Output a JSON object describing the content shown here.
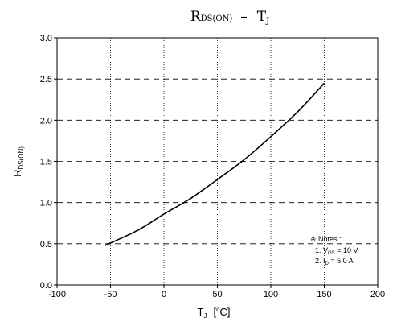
{
  "chart_data": {
    "type": "line",
    "title": {
      "main": "R",
      "sub": "DS(ON)",
      "sep": "–",
      "right_main": "T",
      "right_sub": "J"
    },
    "ylabel": {
      "main": "R",
      "sub": "DS(ON)"
    },
    "xlabel": {
      "main": "T",
      "sub": "J",
      "unit_open": "[",
      "unit_sup": "o",
      "unit_rest": "C]"
    },
    "xlim": [
      -100,
      200
    ],
    "ylim": [
      0.0,
      3.0
    ],
    "x_ticks": [
      -100,
      -50,
      0,
      50,
      100,
      150,
      200
    ],
    "x_tick_labels": [
      "-100",
      "-50",
      "0",
      "50",
      "100",
      "150",
      "200"
    ],
    "y_ticks": [
      0.0,
      0.5,
      1.0,
      1.5,
      2.0,
      2.5,
      3.0
    ],
    "y_tick_labels": [
      "0.0",
      "0.5",
      "1.0",
      "1.5",
      "2.0",
      "2.5",
      "3.0"
    ],
    "grid": {
      "vertical": "dotted",
      "horizontal": "dashed"
    },
    "series": [
      {
        "x": [
          -55,
          -25,
          0,
          25,
          50,
          75,
          100,
          125,
          150
        ],
        "y": [
          0.48,
          0.66,
          0.86,
          1.05,
          1.28,
          1.52,
          1.8,
          2.1,
          2.45
        ]
      }
    ],
    "notes": {
      "heading": "※ Notes :",
      "line1": {
        "prefix": "1. V",
        "sub": "GS",
        "suffix": " = 10 V"
      },
      "line2": {
        "prefix": "2. I",
        "sub": "D",
        "suffix": " = 5.0 A"
      }
    }
  }
}
